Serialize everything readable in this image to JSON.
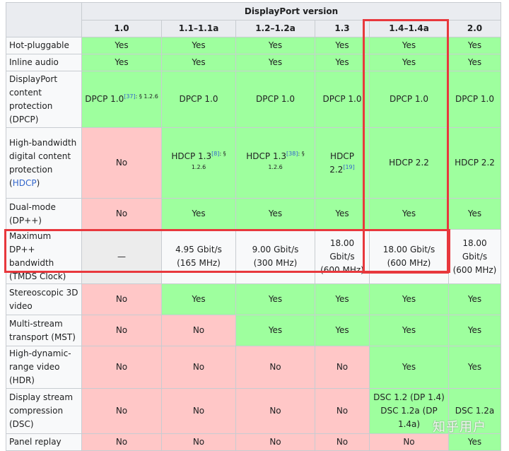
{
  "header": {
    "group_title": "DisplayPort version",
    "versions": [
      "1.0",
      "1.1–1.1a",
      "1.2–1.2a",
      "1.3",
      "1.4–1.4a",
      "2.0"
    ]
  },
  "status_colors": {
    "yes": "#9eff9e",
    "no": "#ffc7c7",
    "na": "#ececec",
    "highlight": "#e8383d"
  },
  "rows": [
    {
      "label": "Hot-pluggable",
      "cells": [
        {
          "text": "Yes",
          "status": "yes"
        },
        {
          "text": "Yes",
          "status": "yes"
        },
        {
          "text": "Yes",
          "status": "yes"
        },
        {
          "text": "Yes",
          "status": "yes"
        },
        {
          "text": "Yes",
          "status": "yes"
        },
        {
          "text": "Yes",
          "status": "yes"
        }
      ]
    },
    {
      "label": "Inline audio",
      "cells": [
        {
          "text": "Yes",
          "status": "yes"
        },
        {
          "text": "Yes",
          "status": "yes"
        },
        {
          "text": "Yes",
          "status": "yes"
        },
        {
          "text": "Yes",
          "status": "yes"
        },
        {
          "text": "Yes",
          "status": "yes"
        },
        {
          "text": "Yes",
          "status": "yes"
        }
      ]
    },
    {
      "label": "DisplayPort content protection (DPCP)",
      "cells": [
        {
          "text": "DPCP 1.0",
          "status": "yes",
          "ref": "[37]",
          "section": ": § 1.2.6"
        },
        {
          "text": "DPCP 1.0",
          "status": "yes"
        },
        {
          "text": "DPCP 1.0",
          "status": "yes"
        },
        {
          "text": "DPCP 1.0",
          "status": "yes"
        },
        {
          "text": "DPCP 1.0",
          "status": "yes"
        },
        {
          "text": "DPCP 1.0",
          "status": "yes"
        }
      ]
    },
    {
      "label": "High-bandwidth digital content protection (",
      "label_link": "HDCP",
      "label_after": ")",
      "cells": [
        {
          "text": "No",
          "status": "no"
        },
        {
          "text": "HDCP 1.3",
          "status": "yes",
          "ref": "[8]",
          "section": ": § 1.2.6"
        },
        {
          "text": "HDCP 1.3",
          "status": "yes",
          "ref": "[38]",
          "section": ": § 1.2.6"
        },
        {
          "text": "HDCP 2.2",
          "status": "yes",
          "ref": "[19]"
        },
        {
          "text": "HDCP 2.2",
          "status": "yes"
        },
        {
          "text": "HDCP 2.2",
          "status": "yes"
        }
      ]
    },
    {
      "label": "Dual-mode (DP++)",
      "cells": [
        {
          "text": "No",
          "status": "no"
        },
        {
          "text": "Yes",
          "status": "yes"
        },
        {
          "text": "Yes",
          "status": "yes"
        },
        {
          "text": "Yes",
          "status": "yes"
        },
        {
          "text": "Yes",
          "status": "yes"
        },
        {
          "text": "Yes",
          "status": "yes"
        }
      ]
    },
    {
      "label": "Maximum DP++ bandwidth (TMDS Clock)",
      "cells": [
        {
          "text": "—",
          "status": "na"
        },
        {
          "text": "4.95 Gbit/s",
          "text2": "(165 MHz)",
          "status": "plain"
        },
        {
          "text": "9.00 Gbit/s",
          "text2": "(300 MHz)",
          "status": "plain"
        },
        {
          "text": "18.00 Gbit/s",
          "text2": "(600 MHz)",
          "status": "plain"
        },
        {
          "text": "18.00 Gbit/s",
          "text2": "(600 MHz)",
          "status": "plain"
        },
        {
          "text": "18.00 Gbit/s",
          "text2": "(600 MHz)",
          "status": "plain"
        }
      ]
    },
    {
      "label": "Stereoscopic 3D video",
      "cells": [
        {
          "text": "No",
          "status": "no"
        },
        {
          "text": "Yes",
          "status": "yes"
        },
        {
          "text": "Yes",
          "status": "yes"
        },
        {
          "text": "Yes",
          "status": "yes"
        },
        {
          "text": "Yes",
          "status": "yes"
        },
        {
          "text": "Yes",
          "status": "yes"
        }
      ]
    },
    {
      "label": "Multi-stream transport (MST)",
      "cells": [
        {
          "text": "No",
          "status": "no"
        },
        {
          "text": "No",
          "status": "no"
        },
        {
          "text": "Yes",
          "status": "yes"
        },
        {
          "text": "Yes",
          "status": "yes"
        },
        {
          "text": "Yes",
          "status": "yes"
        },
        {
          "text": "Yes",
          "status": "yes"
        }
      ]
    },
    {
      "label": "High-dynamic-range video (HDR)",
      "cells": [
        {
          "text": "No",
          "status": "no"
        },
        {
          "text": "No",
          "status": "no"
        },
        {
          "text": "No",
          "status": "no"
        },
        {
          "text": "No",
          "status": "no"
        },
        {
          "text": "Yes",
          "status": "yes"
        },
        {
          "text": "Yes",
          "status": "yes"
        }
      ]
    },
    {
      "label": "Display stream compression (DSC)",
      "cells": [
        {
          "text": "No",
          "status": "no"
        },
        {
          "text": "No",
          "status": "no"
        },
        {
          "text": "No",
          "status": "no"
        },
        {
          "text": "No",
          "status": "no"
        },
        {
          "text": "DSC 1.2 (DP 1.4)",
          "text2": "DSC 1.2a (DP 1.4a)",
          "status": "yes"
        },
        {
          "text": "DSC 1.2a",
          "status": "yes"
        }
      ]
    },
    {
      "label": "Panel replay",
      "cells": [
        {
          "text": "No",
          "status": "no"
        },
        {
          "text": "No",
          "status": "no"
        },
        {
          "text": "No",
          "status": "no"
        },
        {
          "text": "No",
          "status": "no"
        },
        {
          "text": "No",
          "status": "no"
        },
        {
          "text": "Yes",
          "status": "yes"
        }
      ]
    }
  ],
  "watermark": "知乎用户"
}
